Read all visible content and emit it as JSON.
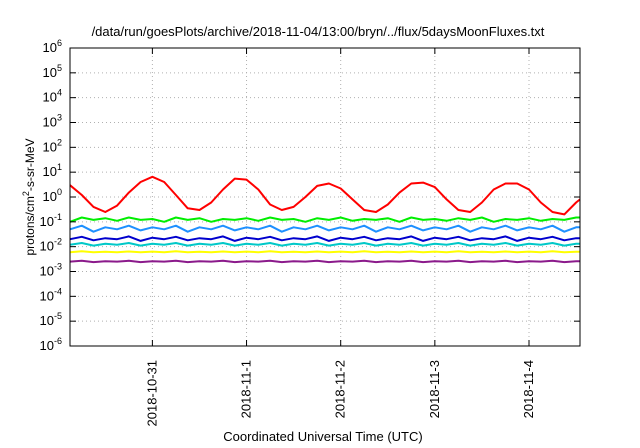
{
  "chart_data": {
    "type": "line",
    "title": "/data/run/goesPlots/archive/2018-11-04/13:00/bryn/../flux/5daysMoonFluxes.txt",
    "xlabel": "Coordinated Universal Time (UTC)",
    "ylabel_parts": [
      "protons/cm",
      "2",
      "-s-sr-MeV"
    ],
    "y_scale": "log",
    "ylim": [
      1e-06,
      1000000.0
    ],
    "y_ticks": [
      {
        "base": "10",
        "exp": "-6",
        "value": 1e-06
      },
      {
        "base": "10",
        "exp": "-5",
        "value": 1e-05
      },
      {
        "base": "10",
        "exp": "-4",
        "value": 0.0001
      },
      {
        "base": "10",
        "exp": "-3",
        "value": 0.001
      },
      {
        "base": "10",
        "exp": "-2",
        "value": 0.01
      },
      {
        "base": "10",
        "exp": "-1",
        "value": 0.1
      },
      {
        "base": "10",
        "exp": "0",
        "value": 1
      },
      {
        "base": "10",
        "exp": "1",
        "value": 10
      },
      {
        "base": "10",
        "exp": "2",
        "value": 100
      },
      {
        "base": "10",
        "exp": "3",
        "value": 1000
      },
      {
        "base": "10",
        "exp": "4",
        "value": 10000
      },
      {
        "base": "10",
        "exp": "5",
        "value": 100000
      },
      {
        "base": "10",
        "exp": "6",
        "value": 1000000
      }
    ],
    "xlim": [
      "2018-10-30T03:00",
      "2018-11-04T13:00"
    ],
    "x_ticks": [
      {
        "label": "2018-10-31",
        "value": "2018-10-31T00:00"
      },
      {
        "label": "2018-11-1",
        "value": "2018-11-01T00:00"
      },
      {
        "label": "2018-11-2",
        "value": "2018-11-02T00:00"
      },
      {
        "label": "2018-11-3",
        "value": "2018-11-03T00:00"
      },
      {
        "label": "2018-11-4",
        "value": "2018-11-04T00:00"
      }
    ],
    "grid": true,
    "legend": "none",
    "x": [
      "2018-10-30T03:00",
      "2018-10-30T06:00",
      "2018-10-30T09:00",
      "2018-10-30T12:00",
      "2018-10-30T15:00",
      "2018-10-30T18:00",
      "2018-10-30T21:00",
      "2018-10-31T00:00",
      "2018-10-31T03:00",
      "2018-10-31T06:00",
      "2018-10-31T09:00",
      "2018-10-31T12:00",
      "2018-10-31T15:00",
      "2018-10-31T18:00",
      "2018-10-31T21:00",
      "2018-11-01T00:00",
      "2018-11-01T03:00",
      "2018-11-01T06:00",
      "2018-11-01T09:00",
      "2018-11-01T12:00",
      "2018-11-01T15:00",
      "2018-11-01T18:00",
      "2018-11-01T21:00",
      "2018-11-02T00:00",
      "2018-11-02T03:00",
      "2018-11-02T06:00",
      "2018-11-02T09:00",
      "2018-11-02T12:00",
      "2018-11-02T15:00",
      "2018-11-02T18:00",
      "2018-11-02T21:00",
      "2018-11-03T00:00",
      "2018-11-03T03:00",
      "2018-11-03T06:00",
      "2018-11-03T09:00",
      "2018-11-03T12:00",
      "2018-11-03T15:00",
      "2018-11-03T18:00",
      "2018-11-03T21:00",
      "2018-11-04T00:00",
      "2018-11-04T03:00",
      "2018-11-04T06:00",
      "2018-11-04T09:00",
      "2018-11-04T12:00",
      "2018-11-04T13:00"
    ],
    "series": [
      {
        "color": "#ff0000",
        "values": [
          3,
          1.2,
          0.4,
          0.25,
          0.45,
          1.5,
          4,
          6.5,
          4,
          1.2,
          0.35,
          0.3,
          0.6,
          2,
          5.5,
          5,
          2,
          0.5,
          0.3,
          0.4,
          1,
          2.8,
          3.5,
          2.2,
          0.8,
          0.3,
          0.25,
          0.5,
          1.5,
          3.5,
          3.8,
          2.5,
          0.8,
          0.3,
          0.25,
          0.6,
          2,
          3.5,
          3.5,
          2,
          0.6,
          0.25,
          0.2,
          0.6,
          0.8
        ]
      },
      {
        "color": "#00ee00",
        "values": [
          0.1,
          0.15,
          0.12,
          0.14,
          0.11,
          0.15,
          0.12,
          0.13,
          0.1,
          0.15,
          0.12,
          0.14,
          0.1,
          0.13,
          0.12,
          0.14,
          0.11,
          0.15,
          0.12,
          0.13,
          0.1,
          0.14,
          0.12,
          0.15,
          0.11,
          0.13,
          0.12,
          0.14,
          0.1,
          0.15,
          0.12,
          0.13,
          0.11,
          0.14,
          0.12,
          0.15,
          0.1,
          0.13,
          0.12,
          0.14,
          0.11,
          0.13,
          0.12,
          0.15,
          0.15
        ]
      },
      {
        "color": "#1e90ff",
        "values": [
          0.05,
          0.07,
          0.04,
          0.06,
          0.05,
          0.07,
          0.045,
          0.06,
          0.05,
          0.07,
          0.04,
          0.06,
          0.05,
          0.07,
          0.045,
          0.06,
          0.05,
          0.07,
          0.04,
          0.06,
          0.05,
          0.07,
          0.045,
          0.06,
          0.05,
          0.07,
          0.04,
          0.06,
          0.05,
          0.07,
          0.045,
          0.06,
          0.05,
          0.07,
          0.04,
          0.06,
          0.05,
          0.07,
          0.045,
          0.06,
          0.05,
          0.07,
          0.04,
          0.06,
          0.06
        ]
      },
      {
        "color": "#0000cd",
        "values": [
          0.02,
          0.025,
          0.018,
          0.022,
          0.02,
          0.026,
          0.017,
          0.023,
          0.02,
          0.025,
          0.018,
          0.022,
          0.02,
          0.026,
          0.017,
          0.023,
          0.02,
          0.025,
          0.018,
          0.022,
          0.02,
          0.026,
          0.017,
          0.023,
          0.02,
          0.025,
          0.018,
          0.022,
          0.02,
          0.026,
          0.017,
          0.023,
          0.02,
          0.025,
          0.018,
          0.022,
          0.02,
          0.026,
          0.017,
          0.023,
          0.02,
          0.025,
          0.018,
          0.022,
          0.022
        ]
      },
      {
        "color": "#00c8c8",
        "values": [
          0.012,
          0.014,
          0.011,
          0.013,
          0.012,
          0.014,
          0.011,
          0.013,
          0.012,
          0.014,
          0.011,
          0.013,
          0.012,
          0.014,
          0.011,
          0.013,
          0.012,
          0.014,
          0.011,
          0.013,
          0.012,
          0.014,
          0.011,
          0.013,
          0.012,
          0.014,
          0.011,
          0.013,
          0.012,
          0.014,
          0.011,
          0.013,
          0.012,
          0.014,
          0.011,
          0.013,
          0.012,
          0.014,
          0.011,
          0.013,
          0.012,
          0.014,
          0.011,
          0.013,
          0.013
        ]
      },
      {
        "color": "#ffff00",
        "values": [
          0.006,
          0.0065,
          0.006,
          0.0062,
          0.006,
          0.0064,
          0.006,
          0.0063,
          0.006,
          0.0065,
          0.006,
          0.0062,
          0.006,
          0.0064,
          0.006,
          0.0063,
          0.006,
          0.0065,
          0.006,
          0.0062,
          0.006,
          0.0064,
          0.006,
          0.0063,
          0.006,
          0.0065,
          0.006,
          0.0062,
          0.006,
          0.0064,
          0.006,
          0.0063,
          0.006,
          0.0065,
          0.006,
          0.0062,
          0.006,
          0.0064,
          0.006,
          0.0063,
          0.006,
          0.0065,
          0.006,
          0.0062,
          0.0062
        ]
      },
      {
        "color": "#8b1a8b",
        "values": [
          0.0025,
          0.0027,
          0.0024,
          0.0026,
          0.0025,
          0.0027,
          0.0024,
          0.0026,
          0.0025,
          0.0027,
          0.0024,
          0.0026,
          0.0025,
          0.0027,
          0.0024,
          0.0026,
          0.0025,
          0.0027,
          0.0024,
          0.0026,
          0.0025,
          0.0027,
          0.0024,
          0.0026,
          0.0025,
          0.0027,
          0.0024,
          0.0026,
          0.0025,
          0.0027,
          0.0024,
          0.0026,
          0.0025,
          0.0027,
          0.0024,
          0.0026,
          0.0025,
          0.0027,
          0.0024,
          0.0026,
          0.0025,
          0.0027,
          0.0024,
          0.0026,
          0.0026
        ]
      }
    ]
  }
}
